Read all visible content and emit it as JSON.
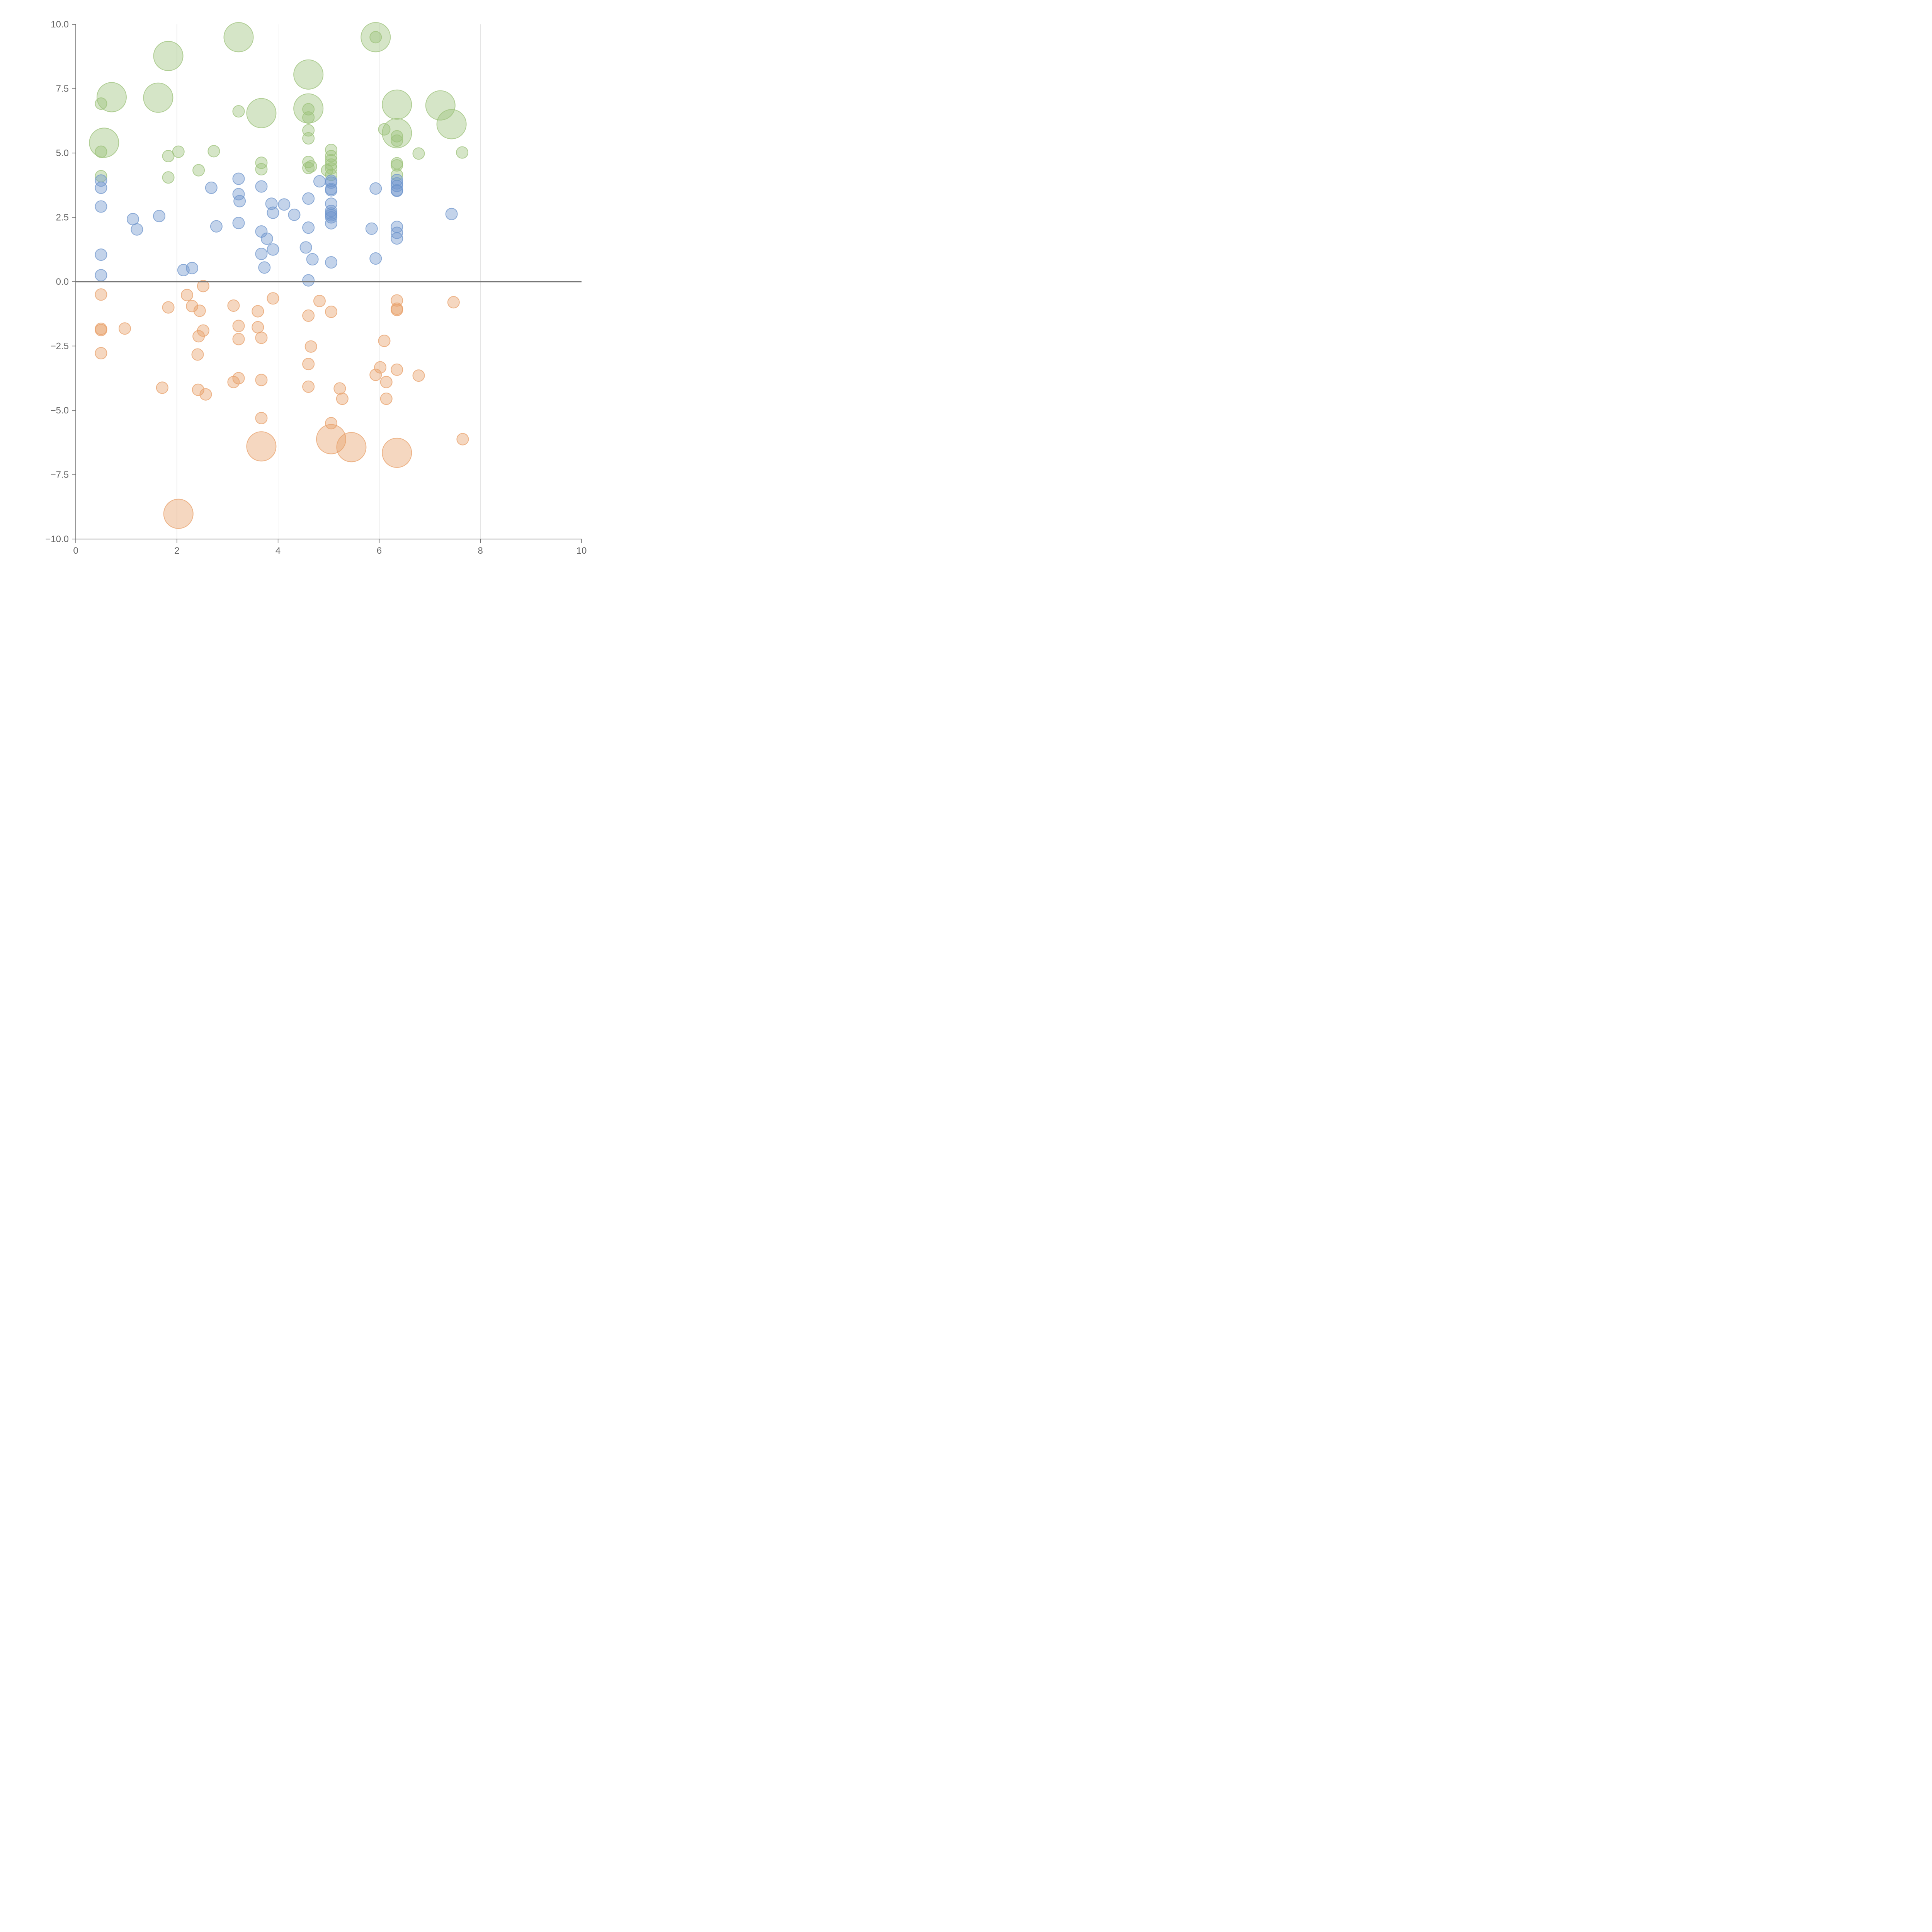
{
  "chart_data": {
    "type": "scatter",
    "title": "",
    "xlabel": "",
    "ylabel": "",
    "xlim": [
      0,
      10
    ],
    "ylim": [
      -10,
      10
    ],
    "x_ticks": [
      0,
      2,
      4,
      6,
      8,
      10
    ],
    "x_tick_labels": [
      "0",
      "2",
      "4",
      "6",
      "8",
      "10"
    ],
    "y_ticks": [
      10,
      7.5,
      5,
      2.5,
      0,
      -2.5,
      -5,
      -7.5,
      -10
    ],
    "y_tick_labels": [
      "10.0",
      "7.5",
      "5.0",
      "2.5",
      "0.0",
      "−2.5",
      "−5.0",
      "−7.5",
      "−10.0"
    ],
    "grid": "vertical lines at x = 2, 4, 6, 8",
    "reference_line_y": 0,
    "legend": "none",
    "series": [
      {
        "color": "#9cc17a",
        "points": [
          {
            "x": 3.22,
            "y": 9.5,
            "s": 2
          },
          {
            "x": 5.93,
            "y": 9.5,
            "s": 2
          },
          {
            "x": 5.93,
            "y": 9.5,
            "s": 0
          },
          {
            "x": 1.83,
            "y": 8.77,
            "s": 2
          },
          {
            "x": 4.6,
            "y": 8.05,
            "s": 2
          },
          {
            "x": 0.71,
            "y": 7.17,
            "s": 2
          },
          {
            "x": 1.63,
            "y": 7.15,
            "s": 2
          },
          {
            "x": 0.5,
            "y": 6.92,
            "s": 0
          },
          {
            "x": 6.35,
            "y": 6.88,
            "s": 2
          },
          {
            "x": 7.21,
            "y": 6.85,
            "s": 2
          },
          {
            "x": 4.6,
            "y": 6.73,
            "s": 2
          },
          {
            "x": 4.6,
            "y": 6.7,
            "s": 0
          },
          {
            "x": 3.22,
            "y": 6.62,
            "s": 0
          },
          {
            "x": 3.67,
            "y": 6.55,
            "s": 2
          },
          {
            "x": 4.6,
            "y": 6.38,
            "s": 0
          },
          {
            "x": 7.43,
            "y": 6.12,
            "s": 2
          },
          {
            "x": 6.1,
            "y": 5.92,
            "s": 0
          },
          {
            "x": 4.6,
            "y": 5.88,
            "s": 0
          },
          {
            "x": 6.35,
            "y": 5.77,
            "s": 2
          },
          {
            "x": 6.35,
            "y": 5.65,
            "s": 0
          },
          {
            "x": 4.6,
            "y": 5.57,
            "s": 0
          },
          {
            "x": 6.35,
            "y": 5.48,
            "s": 0
          },
          {
            "x": 0.56,
            "y": 5.4,
            "s": 2
          },
          {
            "x": 0.5,
            "y": 5.05,
            "s": 0
          },
          {
            "x": 2.03,
            "y": 5.05,
            "s": 0
          },
          {
            "x": 2.73,
            "y": 5.07,
            "s": 0
          },
          {
            "x": 5.05,
            "y": 5.12,
            "s": 0
          },
          {
            "x": 7.64,
            "y": 5.02,
            "s": 0
          },
          {
            "x": 6.78,
            "y": 4.98,
            "s": 0
          },
          {
            "x": 1.83,
            "y": 4.88,
            "s": 0
          },
          {
            "x": 5.05,
            "y": 4.88,
            "s": 0
          },
          {
            "x": 5.05,
            "y": 4.72,
            "s": 0
          },
          {
            "x": 3.67,
            "y": 4.62,
            "s": 0
          },
          {
            "x": 4.6,
            "y": 4.65,
            "s": 0
          },
          {
            "x": 6.35,
            "y": 4.6,
            "s": 0
          },
          {
            "x": 6.35,
            "y": 4.52,
            "s": 0
          },
          {
            "x": 5.05,
            "y": 4.55,
            "s": 0
          },
          {
            "x": 4.65,
            "y": 4.48,
            "s": 0
          },
          {
            "x": 4.6,
            "y": 4.42,
            "s": 0
          },
          {
            "x": 3.67,
            "y": 4.37,
            "s": 0
          },
          {
            "x": 5.05,
            "y": 4.4,
            "s": 0
          },
          {
            "x": 4.97,
            "y": 4.33,
            "s": 0
          },
          {
            "x": 2.43,
            "y": 4.33,
            "s": 0
          },
          {
            "x": 6.35,
            "y": 4.15,
            "s": 0
          },
          {
            "x": 5.05,
            "y": 4.15,
            "s": 0
          },
          {
            "x": 0.5,
            "y": 4.1,
            "s": 0
          },
          {
            "x": 1.83,
            "y": 4.05,
            "s": 0
          }
        ]
      },
      {
        "color": "#6f96cc",
        "points": [
          {
            "x": 3.22,
            "y": 4.0,
            "s": 0
          },
          {
            "x": 0.5,
            "y": 3.93,
            "s": 0
          },
          {
            "x": 6.35,
            "y": 3.95,
            "s": 0
          },
          {
            "x": 5.05,
            "y": 3.92,
            "s": 0
          },
          {
            "x": 4.82,
            "y": 3.9,
            "s": 0
          },
          {
            "x": 5.05,
            "y": 3.85,
            "s": 0
          },
          {
            "x": 6.35,
            "y": 3.82,
            "s": 0
          },
          {
            "x": 6.35,
            "y": 3.72,
            "s": 0
          },
          {
            "x": 3.67,
            "y": 3.7,
            "s": 0
          },
          {
            "x": 2.68,
            "y": 3.65,
            "s": 0
          },
          {
            "x": 0.5,
            "y": 3.65,
            "s": 0
          },
          {
            "x": 5.93,
            "y": 3.62,
            "s": 0
          },
          {
            "x": 5.05,
            "y": 3.6,
            "s": 0
          },
          {
            "x": 5.05,
            "y": 3.55,
            "s": 0
          },
          {
            "x": 6.35,
            "y": 3.55,
            "s": 0
          },
          {
            "x": 6.35,
            "y": 3.53,
            "s": 0
          },
          {
            "x": 3.22,
            "y": 3.4,
            "s": 0
          },
          {
            "x": 4.6,
            "y": 3.23,
            "s": 0
          },
          {
            "x": 3.24,
            "y": 3.13,
            "s": 0
          },
          {
            "x": 3.87,
            "y": 3.03,
            "s": 0
          },
          {
            "x": 4.12,
            "y": 3.0,
            "s": 0
          },
          {
            "x": 5.05,
            "y": 3.03,
            "s": 0
          },
          {
            "x": 0.5,
            "y": 2.92,
            "s": 0
          },
          {
            "x": 5.05,
            "y": 2.75,
            "s": 0
          },
          {
            "x": 3.9,
            "y": 2.68,
            "s": 0
          },
          {
            "x": 5.05,
            "y": 2.65,
            "s": 0
          },
          {
            "x": 7.43,
            "y": 2.63,
            "s": 0
          },
          {
            "x": 4.32,
            "y": 2.6,
            "s": 0
          },
          {
            "x": 5.05,
            "y": 2.58,
            "s": 0
          },
          {
            "x": 1.65,
            "y": 2.55,
            "s": 0
          },
          {
            "x": 5.05,
            "y": 2.5,
            "s": 0
          },
          {
            "x": 1.13,
            "y": 2.43,
            "s": 0
          },
          {
            "x": 3.22,
            "y": 2.28,
            "s": 0
          },
          {
            "x": 5.05,
            "y": 2.27,
            "s": 0
          },
          {
            "x": 2.78,
            "y": 2.15,
            "s": 0
          },
          {
            "x": 6.35,
            "y": 2.13,
            "s": 0
          },
          {
            "x": 4.6,
            "y": 2.1,
            "s": 0
          },
          {
            "x": 5.85,
            "y": 2.06,
            "s": 0
          },
          {
            "x": 1.21,
            "y": 2.03,
            "s": 0
          },
          {
            "x": 3.67,
            "y": 1.95,
            "s": 0
          },
          {
            "x": 6.35,
            "y": 1.9,
            "s": 0
          },
          {
            "x": 3.78,
            "y": 1.67,
            "s": 0
          },
          {
            "x": 6.35,
            "y": 1.68,
            "s": 0
          },
          {
            "x": 4.55,
            "y": 1.33,
            "s": 0
          },
          {
            "x": 3.9,
            "y": 1.25,
            "s": 0
          },
          {
            "x": 3.67,
            "y": 1.08,
            "s": 0
          },
          {
            "x": 0.5,
            "y": 1.05,
            "s": 0
          },
          {
            "x": 5.93,
            "y": 0.9,
            "s": 0
          },
          {
            "x": 4.68,
            "y": 0.87,
            "s": 0
          },
          {
            "x": 5.05,
            "y": 0.75,
            "s": 0
          },
          {
            "x": 3.73,
            "y": 0.55,
            "s": 0
          },
          {
            "x": 2.3,
            "y": 0.53,
            "s": 0
          },
          {
            "x": 2.13,
            "y": 0.45,
            "s": 0
          },
          {
            "x": 0.5,
            "y": 0.25,
            "s": 0
          },
          {
            "x": 4.6,
            "y": 0.05,
            "s": 0
          }
        ]
      },
      {
        "color": "#e8a06a",
        "points": [
          {
            "x": 2.52,
            "y": -0.17,
            "s": 0
          },
          {
            "x": 0.5,
            "y": -0.5,
            "s": 0
          },
          {
            "x": 2.2,
            "y": -0.52,
            "s": 0
          },
          {
            "x": 3.9,
            "y": -0.65,
            "s": 0
          },
          {
            "x": 6.35,
            "y": -0.73,
            "s": 0
          },
          {
            "x": 4.82,
            "y": -0.75,
            "s": 0
          },
          {
            "x": 7.47,
            "y": -0.8,
            "s": 0
          },
          {
            "x": 3.12,
            "y": -0.93,
            "s": 0
          },
          {
            "x": 2.3,
            "y": -0.95,
            "s": 0
          },
          {
            "x": 1.83,
            "y": -1.0,
            "s": 0
          },
          {
            "x": 6.35,
            "y": -1.05,
            "s": 0
          },
          {
            "x": 6.35,
            "y": -1.1,
            "s": 0
          },
          {
            "x": 2.45,
            "y": -1.13,
            "s": 0
          },
          {
            "x": 3.6,
            "y": -1.15,
            "s": 0
          },
          {
            "x": 5.05,
            "y": -1.17,
            "s": 0
          },
          {
            "x": 4.6,
            "y": -1.32,
            "s": 0
          },
          {
            "x": 3.22,
            "y": -1.72,
            "s": 0
          },
          {
            "x": 3.6,
            "y": -1.77,
            "s": 0
          },
          {
            "x": 0.97,
            "y": -1.82,
            "s": 0
          },
          {
            "x": 0.5,
            "y": -1.83,
            "s": 0
          },
          {
            "x": 0.5,
            "y": -1.88,
            "s": 0
          },
          {
            "x": 2.52,
            "y": -1.9,
            "s": 0
          },
          {
            "x": 2.43,
            "y": -2.12,
            "s": 0
          },
          {
            "x": 3.67,
            "y": -2.18,
            "s": 0
          },
          {
            "x": 3.22,
            "y": -2.23,
            "s": 0
          },
          {
            "x": 6.1,
            "y": -2.3,
            "s": 0
          },
          {
            "x": 4.65,
            "y": -2.52,
            "s": 0
          },
          {
            "x": 0.5,
            "y": -2.78,
            "s": 0
          },
          {
            "x": 2.41,
            "y": -2.83,
            "s": 0
          },
          {
            "x": 4.6,
            "y": -3.2,
            "s": 0
          },
          {
            "x": 6.02,
            "y": -3.33,
            "s": 0
          },
          {
            "x": 6.35,
            "y": -3.42,
            "s": 0
          },
          {
            "x": 5.93,
            "y": -3.62,
            "s": 0
          },
          {
            "x": 6.78,
            "y": -3.65,
            "s": 0
          },
          {
            "x": 3.22,
            "y": -3.75,
            "s": 0
          },
          {
            "x": 3.67,
            "y": -3.82,
            "s": 0
          },
          {
            "x": 3.12,
            "y": -3.9,
            "s": 0
          },
          {
            "x": 6.14,
            "y": -3.9,
            "s": 0
          },
          {
            "x": 4.6,
            "y": -4.08,
            "s": 0
          },
          {
            "x": 1.71,
            "y": -4.12,
            "s": 0
          },
          {
            "x": 5.22,
            "y": -4.15,
            "s": 0
          },
          {
            "x": 2.42,
            "y": -4.2,
            "s": 0
          },
          {
            "x": 2.57,
            "y": -4.38,
            "s": 0
          },
          {
            "x": 5.27,
            "y": -4.55,
            "s": 0
          },
          {
            "x": 6.14,
            "y": -4.55,
            "s": 0
          },
          {
            "x": 3.67,
            "y": -5.3,
            "s": 0
          },
          {
            "x": 5.05,
            "y": -5.5,
            "s": 0
          },
          {
            "x": 5.05,
            "y": -6.12,
            "s": 2
          },
          {
            "x": 7.65,
            "y": -6.12,
            "s": 0
          },
          {
            "x": 3.67,
            "y": -6.4,
            "s": 2
          },
          {
            "x": 5.45,
            "y": -6.43,
            "s": 2
          },
          {
            "x": 6.35,
            "y": -6.65,
            "s": 2
          },
          {
            "x": 2.03,
            "y": -9.02,
            "s": 2
          }
        ]
      }
    ]
  }
}
